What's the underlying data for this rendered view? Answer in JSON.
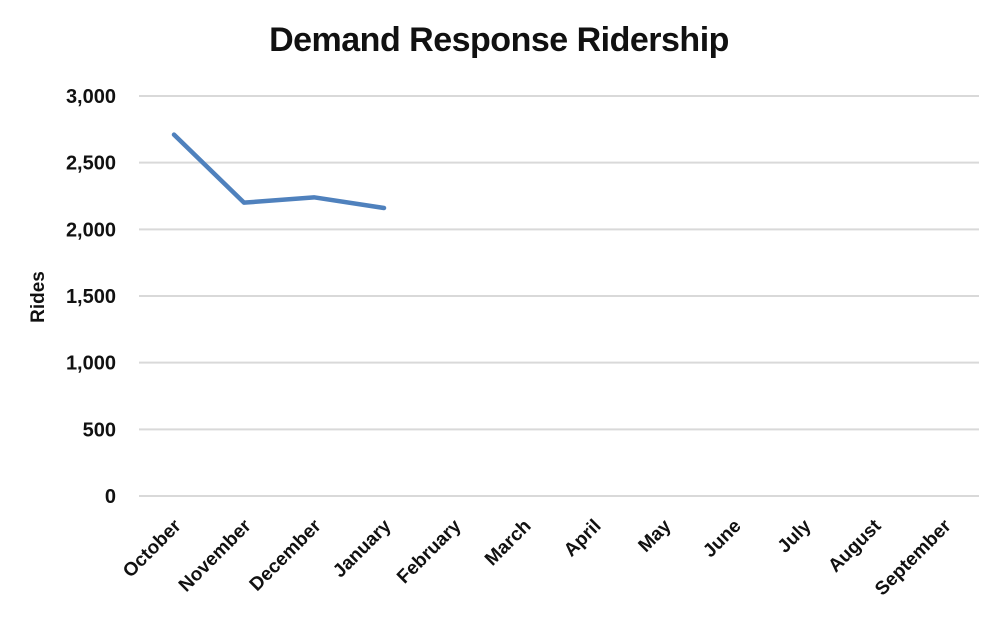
{
  "title": "Demand Response Ridership",
  "y_axis": {
    "title": "Rides"
  },
  "chart_data": {
    "type": "line",
    "title": "Demand Response Ridership",
    "ylabel": "Rides",
    "xlabel": "",
    "categories": [
      "October",
      "November",
      "December",
      "January",
      "February",
      "March",
      "April",
      "May",
      "June",
      "July",
      "August",
      "September"
    ],
    "series": [
      {
        "name": "Rides",
        "values": [
          2710,
          2200,
          2240,
          2160
        ]
      }
    ],
    "ylim": [
      0,
      3000
    ],
    "ytick_step": 500,
    "ytick_labels": [
      "0",
      "500",
      "1,000",
      "1,500",
      "2,000",
      "2,500",
      "3,000"
    ],
    "grid": "horizontal-only",
    "legend": "none",
    "line_color": "#4F81BD",
    "gridline_color": "#D9D9D9",
    "text_color": "#111111",
    "background": "#FFFFFF"
  }
}
